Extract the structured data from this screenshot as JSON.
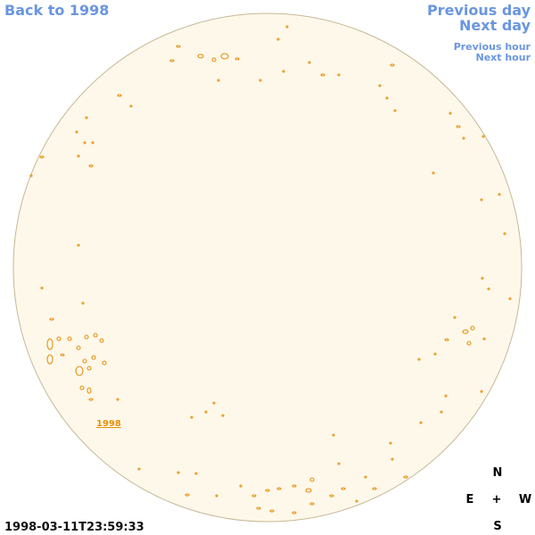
{
  "nav": {
    "back": "Back to 1998",
    "previous_day": "Previous day",
    "next_day": "Next day",
    "previous_hour": "Previous hour",
    "next_hour": "Next hour"
  },
  "disk_label": "1998",
  "compass": {
    "north": "N",
    "east": "E",
    "center": "+",
    "west": "W",
    "south": "S"
  },
  "timestamp": "1998-03-11T23:59:33"
}
